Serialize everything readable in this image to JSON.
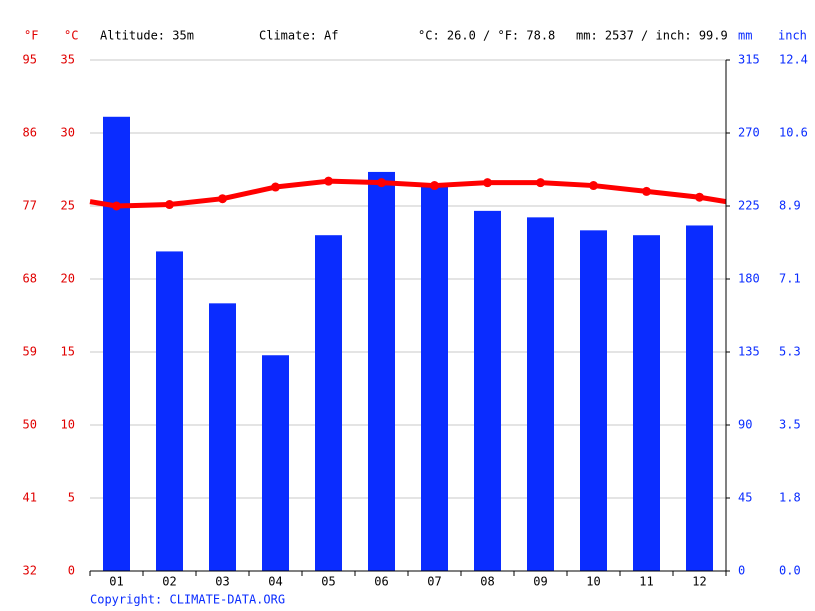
{
  "chart_data": {
    "type": "bar_line",
    "header": {
      "unit_f": "°F",
      "unit_c": "°C",
      "altitude": "Altitude: 35m",
      "climate": "Climate: Af",
      "temp_summary": "°C: 26.0 / °F: 78.8",
      "precip_summary": "mm: 2537 / inch: 99.9",
      "unit_mm": "mm",
      "unit_inch": "inch"
    },
    "categories": [
      "01",
      "02",
      "03",
      "04",
      "05",
      "06",
      "07",
      "08",
      "09",
      "10",
      "11",
      "12"
    ],
    "series": [
      {
        "name": "Precipitation",
        "color": "#0a2cff",
        "axis": "y2",
        "kind": "bar",
        "values": [
          280,
          197,
          165,
          133,
          207,
          246,
          239,
          222,
          218,
          210,
          207,
          213
        ]
      },
      {
        "name": "Temperature",
        "color": "#ff0000",
        "axis": "y",
        "kind": "line",
        "values": [
          25.0,
          25.1,
          25.5,
          26.3,
          26.7,
          26.6,
          26.4,
          26.6,
          26.6,
          26.4,
          26.0,
          25.6
        ]
      }
    ],
    "ylim": [
      0,
      35
    ],
    "yticks": [
      0,
      5,
      10,
      15,
      20,
      25,
      30,
      35
    ],
    "yticks_f": [
      {
        "value": 0,
        "label": "32"
      },
      {
        "value": 5,
        "label": "41"
      },
      {
        "value": 10,
        "label": "50"
      },
      {
        "value": 15,
        "label": "59"
      },
      {
        "value": 20,
        "label": "68"
      },
      {
        "value": 25,
        "label": "77"
      },
      {
        "value": 30,
        "label": "86"
      },
      {
        "value": 35,
        "label": "95"
      }
    ],
    "y2lim": [
      0,
      315
    ],
    "y2ticks": [
      0,
      45,
      90,
      135,
      180,
      225,
      270,
      315
    ],
    "y2ticks_inch": [
      {
        "value": 0,
        "label": "0.0"
      },
      {
        "value": 45,
        "label": "1.8"
      },
      {
        "value": 90,
        "label": "3.5"
      },
      {
        "value": 135,
        "label": "5.3"
      },
      {
        "value": 180,
        "label": "7.1"
      },
      {
        "value": 225,
        "label": "8.9"
      },
      {
        "value": 270,
        "label": "10.6"
      },
      {
        "value": 315,
        "label": "12.4"
      }
    ],
    "grid": true,
    "copyright": "Copyright: CLIMATE-DATA.ORG"
  }
}
